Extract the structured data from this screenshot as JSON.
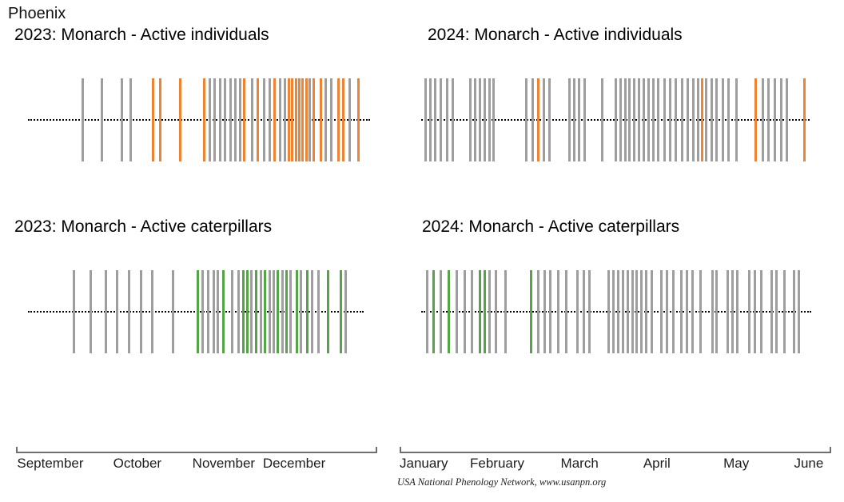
{
  "title": "Phoenix",
  "attribution": "USA National Phenology Network, www.usanpn.org",
  "colors": {
    "gray": "#9e9e9e",
    "orange": "#ee8433",
    "green": "#53a546"
  },
  "axes": {
    "left": {
      "months": [
        "September",
        "October",
        "November",
        "December"
      ],
      "positions": [
        0.095,
        0.336,
        0.575,
        0.77
      ]
    },
    "right": {
      "months": [
        "January",
        "February",
        "March",
        "April",
        "May",
        "June"
      ],
      "positions": [
        0.056,
        0.226,
        0.417,
        0.596,
        0.78,
        0.948
      ]
    }
  },
  "chart_data": [
    {
      "type": "rug",
      "title": "2023: Monarch - Active individuals",
      "year": "2023",
      "species": "Monarch",
      "phenophase": "Active individuals",
      "x_axis_months": [
        "September",
        "October",
        "November",
        "December"
      ],
      "highlight_color": "orange",
      "tick_pos_note": "p = fraction along Sep 1 - Dec 31 axis; c = bar color (gray = animal observed, orange = phenophase observed)",
      "ticks": [
        {
          "p": 0.16,
          "c": "gray"
        },
        {
          "p": 0.215,
          "c": "gray"
        },
        {
          "p": 0.273,
          "c": "gray"
        },
        {
          "p": 0.3,
          "c": "gray"
        },
        {
          "p": 0.365,
          "c": "orange"
        },
        {
          "p": 0.385,
          "c": "orange"
        },
        {
          "p": 0.445,
          "c": "orange"
        },
        {
          "p": 0.515,
          "c": "orange"
        },
        {
          "p": 0.53,
          "c": "gray"
        },
        {
          "p": 0.545,
          "c": "gray"
        },
        {
          "p": 0.56,
          "c": "gray"
        },
        {
          "p": 0.575,
          "c": "gray"
        },
        {
          "p": 0.59,
          "c": "gray"
        },
        {
          "p": 0.605,
          "c": "gray"
        },
        {
          "p": 0.62,
          "c": "gray"
        },
        {
          "p": 0.632,
          "c": "orange"
        },
        {
          "p": 0.655,
          "c": "gray"
        },
        {
          "p": 0.67,
          "c": "orange"
        },
        {
          "p": 0.69,
          "c": "gray"
        },
        {
          "p": 0.705,
          "c": "gray"
        },
        {
          "p": 0.72,
          "c": "orange"
        },
        {
          "p": 0.735,
          "c": "gray"
        },
        {
          "p": 0.75,
          "c": "gray"
        },
        {
          "p": 0.762,
          "c": "orange"
        },
        {
          "p": 0.772,
          "c": "orange"
        },
        {
          "p": 0.782,
          "c": "orange"
        },
        {
          "p": 0.792,
          "c": "orange"
        },
        {
          "p": 0.802,
          "c": "orange"
        },
        {
          "p": 0.812,
          "c": "orange"
        },
        {
          "p": 0.822,
          "c": "gray"
        },
        {
          "p": 0.835,
          "c": "orange"
        },
        {
          "p": 0.855,
          "c": "orange"
        },
        {
          "p": 0.87,
          "c": "gray"
        },
        {
          "p": 0.885,
          "c": "gray"
        },
        {
          "p": 0.907,
          "c": "orange"
        },
        {
          "p": 0.92,
          "c": "orange"
        },
        {
          "p": 0.94,
          "c": "gray"
        },
        {
          "p": 0.965,
          "c": "orange"
        }
      ]
    },
    {
      "type": "rug",
      "title": "2024: Monarch - Active individuals",
      "year": "2024",
      "species": "Monarch",
      "phenophase": "Active individuals",
      "x_axis_months": [
        "January",
        "February",
        "March",
        "April",
        "May",
        "June"
      ],
      "highlight_color": "orange",
      "tick_pos_note": "p = fraction along Jan 1 - Jun 30 axis; c = bar color (gray = animal observed, orange = phenophase observed)",
      "ticks": [
        {
          "p": 0.01,
          "c": "gray"
        },
        {
          "p": 0.022,
          "c": "gray"
        },
        {
          "p": 0.035,
          "c": "gray"
        },
        {
          "p": 0.05,
          "c": "gray"
        },
        {
          "p": 0.065,
          "c": "gray"
        },
        {
          "p": 0.08,
          "c": "gray"
        },
        {
          "p": 0.125,
          "c": "gray"
        },
        {
          "p": 0.138,
          "c": "gray"
        },
        {
          "p": 0.15,
          "c": "gray"
        },
        {
          "p": 0.162,
          "c": "gray"
        },
        {
          "p": 0.174,
          "c": "gray"
        },
        {
          "p": 0.186,
          "c": "gray"
        },
        {
          "p": 0.27,
          "c": "gray"
        },
        {
          "p": 0.285,
          "c": "gray"
        },
        {
          "p": 0.3,
          "c": "orange"
        },
        {
          "p": 0.315,
          "c": "gray"
        },
        {
          "p": 0.33,
          "c": "gray"
        },
        {
          "p": 0.38,
          "c": "gray"
        },
        {
          "p": 0.392,
          "c": "gray"
        },
        {
          "p": 0.406,
          "c": "gray"
        },
        {
          "p": 0.42,
          "c": "gray"
        },
        {
          "p": 0.465,
          "c": "gray"
        },
        {
          "p": 0.5,
          "c": "gray"
        },
        {
          "p": 0.512,
          "c": "gray"
        },
        {
          "p": 0.524,
          "c": "gray"
        },
        {
          "p": 0.536,
          "c": "gray"
        },
        {
          "p": 0.548,
          "c": "gray"
        },
        {
          "p": 0.56,
          "c": "gray"
        },
        {
          "p": 0.572,
          "c": "gray"
        },
        {
          "p": 0.584,
          "c": "gray"
        },
        {
          "p": 0.596,
          "c": "gray"
        },
        {
          "p": 0.61,
          "c": "gray"
        },
        {
          "p": 0.625,
          "c": "gray"
        },
        {
          "p": 0.64,
          "c": "gray"
        },
        {
          "p": 0.655,
          "c": "gray"
        },
        {
          "p": 0.67,
          "c": "gray"
        },
        {
          "p": 0.685,
          "c": "gray"
        },
        {
          "p": 0.7,
          "c": "gray"
        },
        {
          "p": 0.712,
          "c": "gray"
        },
        {
          "p": 0.722,
          "c": "orange"
        },
        {
          "p": 0.733,
          "c": "gray"
        },
        {
          "p": 0.746,
          "c": "gray"
        },
        {
          "p": 0.76,
          "c": "gray"
        },
        {
          "p": 0.775,
          "c": "gray"
        },
        {
          "p": 0.79,
          "c": "gray"
        },
        {
          "p": 0.81,
          "c": "gray"
        },
        {
          "p": 0.86,
          "c": "orange"
        },
        {
          "p": 0.878,
          "c": "gray"
        },
        {
          "p": 0.893,
          "c": "gray"
        },
        {
          "p": 0.91,
          "c": "gray"
        },
        {
          "p": 0.925,
          "c": "gray"
        },
        {
          "p": 0.94,
          "c": "gray"
        },
        {
          "p": 0.985,
          "c": "orange"
        }
      ]
    },
    {
      "type": "rug",
      "title": "2023: Monarch - Active caterpillars",
      "year": "2023",
      "species": "Monarch",
      "phenophase": "Active caterpillars",
      "x_axis_months": [
        "September",
        "October",
        "November",
        "December"
      ],
      "highlight_color": "green",
      "tick_pos_note": "p = fraction along Sep 1 - Dec 31 axis; c = bar color (gray = animal observed, green = phenophase observed)",
      "ticks": [
        {
          "p": 0.135,
          "c": "gray"
        },
        {
          "p": 0.185,
          "c": "gray"
        },
        {
          "p": 0.23,
          "c": "gray"
        },
        {
          "p": 0.265,
          "c": "gray"
        },
        {
          "p": 0.3,
          "c": "gray"
        },
        {
          "p": 0.335,
          "c": "gray"
        },
        {
          "p": 0.37,
          "c": "gray"
        },
        {
          "p": 0.43,
          "c": "gray"
        },
        {
          "p": 0.505,
          "c": "green"
        },
        {
          "p": 0.52,
          "c": "gray"
        },
        {
          "p": 0.535,
          "c": "gray"
        },
        {
          "p": 0.552,
          "c": "gray"
        },
        {
          "p": 0.565,
          "c": "gray"
        },
        {
          "p": 0.58,
          "c": "green"
        },
        {
          "p": 0.608,
          "c": "gray"
        },
        {
          "p": 0.625,
          "c": "gray"
        },
        {
          "p": 0.64,
          "c": "green"
        },
        {
          "p": 0.652,
          "c": "green"
        },
        {
          "p": 0.665,
          "c": "gray"
        },
        {
          "p": 0.678,
          "c": "green"
        },
        {
          "p": 0.692,
          "c": "gray"
        },
        {
          "p": 0.705,
          "c": "green"
        },
        {
          "p": 0.718,
          "c": "gray"
        },
        {
          "p": 0.73,
          "c": "gray"
        },
        {
          "p": 0.744,
          "c": "green"
        },
        {
          "p": 0.756,
          "c": "gray"
        },
        {
          "p": 0.77,
          "c": "green"
        },
        {
          "p": 0.782,
          "c": "gray"
        },
        {
          "p": 0.8,
          "c": "green"
        },
        {
          "p": 0.812,
          "c": "gray"
        },
        {
          "p": 0.832,
          "c": "green"
        },
        {
          "p": 0.845,
          "c": "gray"
        },
        {
          "p": 0.865,
          "c": "gray"
        },
        {
          "p": 0.892,
          "c": "green"
        },
        {
          "p": 0.93,
          "c": "green"
        },
        {
          "p": 0.945,
          "c": "gray"
        }
      ]
    },
    {
      "type": "rug",
      "title": "2024: Monarch - Active caterpillars",
      "year": "2024",
      "species": "Monarch",
      "phenophase": "Active caterpillars",
      "x_axis_months": [
        "January",
        "February",
        "March",
        "April",
        "May",
        "June"
      ],
      "highlight_color": "green",
      "tick_pos_note": "p = fraction along Jan 1 - Jun 30 axis; c = bar color (gray = animal observed, green = phenophase observed)",
      "ticks": [
        {
          "p": 0.015,
          "c": "gray"
        },
        {
          "p": 0.03,
          "c": "green"
        },
        {
          "p": 0.05,
          "c": "gray"
        },
        {
          "p": 0.07,
          "c": "green"
        },
        {
          "p": 0.09,
          "c": "gray"
        },
        {
          "p": 0.11,
          "c": "gray"
        },
        {
          "p": 0.13,
          "c": "gray"
        },
        {
          "p": 0.15,
          "c": "green"
        },
        {
          "p": 0.162,
          "c": "green"
        },
        {
          "p": 0.175,
          "c": "gray"
        },
        {
          "p": 0.19,
          "c": "gray"
        },
        {
          "p": 0.215,
          "c": "gray"
        },
        {
          "p": 0.28,
          "c": "green"
        },
        {
          "p": 0.3,
          "c": "gray"
        },
        {
          "p": 0.315,
          "c": "gray"
        },
        {
          "p": 0.33,
          "c": "gray"
        },
        {
          "p": 0.35,
          "c": "gray"
        },
        {
          "p": 0.37,
          "c": "gray"
        },
        {
          "p": 0.4,
          "c": "gray"
        },
        {
          "p": 0.415,
          "c": "gray"
        },
        {
          "p": 0.43,
          "c": "gray"
        },
        {
          "p": 0.48,
          "c": "gray"
        },
        {
          "p": 0.492,
          "c": "gray"
        },
        {
          "p": 0.504,
          "c": "gray"
        },
        {
          "p": 0.516,
          "c": "gray"
        },
        {
          "p": 0.528,
          "c": "gray"
        },
        {
          "p": 0.54,
          "c": "gray"
        },
        {
          "p": 0.552,
          "c": "gray"
        },
        {
          "p": 0.564,
          "c": "gray"
        },
        {
          "p": 0.576,
          "c": "gray"
        },
        {
          "p": 0.59,
          "c": "gray"
        },
        {
          "p": 0.615,
          "c": "gray"
        },
        {
          "p": 0.63,
          "c": "gray"
        },
        {
          "p": 0.645,
          "c": "gray"
        },
        {
          "p": 0.665,
          "c": "gray"
        },
        {
          "p": 0.68,
          "c": "gray"
        },
        {
          "p": 0.695,
          "c": "gray"
        },
        {
          "p": 0.715,
          "c": "gray"
        },
        {
          "p": 0.745,
          "c": "gray"
        },
        {
          "p": 0.757,
          "c": "gray"
        },
        {
          "p": 0.785,
          "c": "gray"
        },
        {
          "p": 0.797,
          "c": "gray"
        },
        {
          "p": 0.81,
          "c": "gray"
        },
        {
          "p": 0.84,
          "c": "gray"
        },
        {
          "p": 0.855,
          "c": "gray"
        },
        {
          "p": 0.87,
          "c": "gray"
        },
        {
          "p": 0.898,
          "c": "gray"
        },
        {
          "p": 0.91,
          "c": "gray"
        },
        {
          "p": 0.93,
          "c": "gray"
        },
        {
          "p": 0.955,
          "c": "gray"
        },
        {
          "p": 0.967,
          "c": "gray"
        }
      ]
    }
  ]
}
